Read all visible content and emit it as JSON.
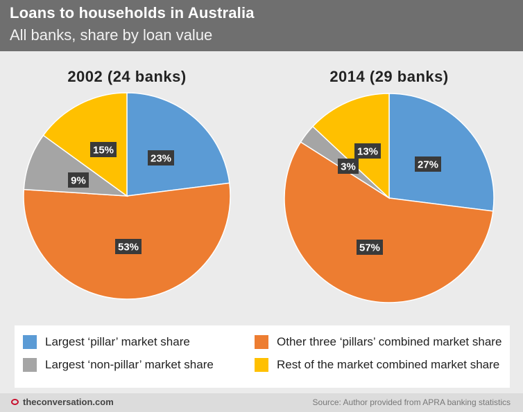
{
  "header": {
    "title": "Loans to households in Australia",
    "subtitle": "All banks, share by loan value"
  },
  "colors": {
    "largest_pillar": "#5b9bd5",
    "other_three_pillars": "#ed7d31",
    "largest_non_pillar": "#a5a5a5",
    "rest_of_market": "#ffc000",
    "label_box": "#3a3a3a"
  },
  "legend": [
    {
      "label": "Largest ‘pillar’ market share",
      "color": "#5b9bd5"
    },
    {
      "label": "Other three ‘pillars’ combined market share",
      "color": "#ed7d31"
    },
    {
      "label": "Largest ‘non-pillar’ market share",
      "color": "#a5a5a5"
    },
    {
      "label": "Rest of the market combined market share",
      "color": "#ffc000"
    }
  ],
  "chart_data": [
    {
      "type": "pie",
      "title": "2002 (24 banks)",
      "categories": [
        "Largest ‘pillar’ market share",
        "Other three ‘pillars’ combined market share",
        "Largest ‘non-pillar’ market share",
        "Rest of the market combined market share"
      ],
      "values": [
        23,
        53,
        9,
        15
      ],
      "labels": [
        "23%",
        "53%",
        "9%",
        "15%"
      ],
      "colors": [
        "#5b9bd5",
        "#ed7d31",
        "#a5a5a5",
        "#ffc000"
      ]
    },
    {
      "type": "pie",
      "title": "2014 (29 banks)",
      "categories": [
        "Largest ‘pillar’ market share",
        "Other three ‘pillars’ combined market share",
        "Largest ‘non-pillar’ market share",
        "Rest of the market combined market share"
      ],
      "values": [
        27,
        57,
        3,
        13
      ],
      "labels": [
        "27%",
        "57%",
        "3%",
        "13%"
      ],
      "colors": [
        "#5b9bd5",
        "#ed7d31",
        "#a5a5a5",
        "#ffc000"
      ]
    }
  ],
  "footer": {
    "brand": "theconversation.com",
    "source": "Source: Author provided from APRA banking statistics"
  }
}
